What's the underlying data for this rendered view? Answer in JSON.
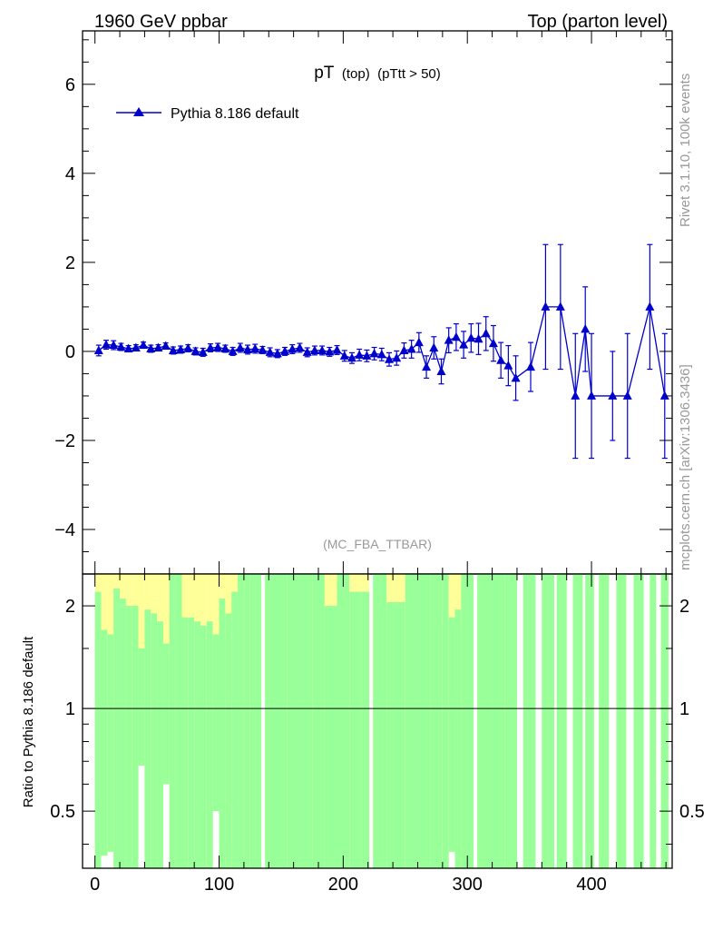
{
  "header": {
    "left_label": "1960 GeV ppbar",
    "right_label": "Top (parton level)"
  },
  "side_labels": {
    "rivet": "Rivet 3.1.10,  100k events",
    "mcplots": "mcplots.cern.ch [arXiv:1306.3436]"
  },
  "colors": {
    "series": "#0000cc",
    "band_inner": "#99ff99",
    "band_outer": "#ffff99",
    "watermark": "#999999"
  },
  "chart_data": [
    {
      "type": "scatter",
      "title": "pT",
      "title_sub1": "(top)",
      "title_sub2": "(pTtt > 50)",
      "watermark": "(MC_FBA_TTBAR)",
      "xlim": [
        -10,
        465
      ],
      "ylim": [
        -5,
        7.2
      ],
      "yticks": [
        -4,
        -2,
        0,
        2,
        4,
        6
      ],
      "ytick_labels": [
        "−4",
        "−2",
        "0",
        "2",
        "4",
        "6"
      ],
      "legend": {
        "label": "Pythia 8.186 default",
        "position": "top-left"
      },
      "series": [
        {
          "name": "Pythia 8.186 default",
          "x": [
            3,
            9,
            15,
            21,
            27,
            33,
            39,
            45,
            51,
            57,
            63,
            69,
            75,
            81,
            87,
            93,
            99,
            105,
            111,
            117,
            123,
            129,
            135,
            141,
            147,
            153,
            159,
            165,
            171,
            177,
            183,
            189,
            195,
            201,
            207,
            213,
            219,
            225,
            231,
            237,
            243,
            249,
            255,
            261,
            267,
            273,
            279,
            285,
            291,
            297,
            303,
            309,
            315,
            321,
            327,
            333,
            339,
            351,
            363,
            375,
            387,
            395,
            400,
            417,
            429,
            447,
            459
          ],
          "y": [
            0.02,
            0.15,
            0.14,
            0.1,
            0.06,
            0.08,
            0.14,
            0.06,
            0.08,
            0.12,
            0.02,
            0.04,
            0.07,
            0.0,
            -0.02,
            0.08,
            0.09,
            0.06,
            0.0,
            0.08,
            0.04,
            0.06,
            0.03,
            -0.02,
            -0.05,
            0.0,
            0.05,
            0.08,
            -0.02,
            0.02,
            0.02,
            -0.01,
            0.03,
            -0.1,
            -0.15,
            -0.08,
            -0.1,
            -0.05,
            -0.07,
            -0.18,
            -0.15,
            0.02,
            0.05,
            0.2,
            -0.35,
            0.08,
            -0.45,
            0.25,
            0.32,
            0.15,
            0.3,
            0.28,
            0.4,
            0.18,
            -0.2,
            -0.32,
            -0.6,
            -0.35,
            1.0,
            1.0,
            -1.0,
            0.5,
            -1.0,
            -1.0,
            -1.0,
            1.0,
            -1.0
          ],
          "yerr": [
            0.12,
            0.1,
            0.1,
            0.08,
            0.07,
            0.07,
            0.07,
            0.08,
            0.07,
            0.07,
            0.08,
            0.08,
            0.08,
            0.08,
            0.09,
            0.09,
            0.09,
            0.08,
            0.09,
            0.1,
            0.1,
            0.1,
            0.08,
            0.1,
            0.09,
            0.09,
            0.1,
            0.1,
            0.1,
            0.1,
            0.1,
            0.1,
            0.1,
            0.12,
            0.12,
            0.13,
            0.13,
            0.14,
            0.14,
            0.15,
            0.16,
            0.17,
            0.2,
            0.22,
            0.25,
            0.25,
            0.28,
            0.28,
            0.3,
            0.3,
            0.32,
            0.35,
            0.38,
            0.4,
            0.4,
            0.45,
            0.5,
            0.55,
            1.4,
            1.4,
            1.4,
            0.95,
            1.4,
            1.0,
            1.4,
            1.4,
            1.4
          ]
        }
      ]
    },
    {
      "type": "bar",
      "ylabel": "Ratio to Pythia 8.186 default",
      "xlim": [
        -10,
        465
      ],
      "ylim": [
        0.34,
        2.48
      ],
      "yscale": "log",
      "yticks": [
        0.5,
        1,
        2
      ],
      "ytick_labels": [
        "0.5",
        "1",
        "2"
      ],
      "xticks": [
        0,
        100,
        200,
        300,
        400
      ],
      "xtick_labels": [
        "0",
        "100",
        "200",
        "300",
        "400"
      ],
      "reference_line": 1,
      "band_bins_x": [
        [
          0,
          5
        ],
        [
          5,
          10
        ],
        [
          10,
          15
        ],
        [
          15,
          20
        ],
        [
          20,
          25
        ],
        [
          25,
          30
        ],
        [
          30,
          35
        ],
        [
          35,
          40
        ],
        [
          40,
          45
        ],
        [
          45,
          50
        ],
        [
          50,
          55
        ],
        [
          55,
          60
        ],
        [
          60,
          65
        ],
        [
          65,
          70
        ],
        [
          70,
          75
        ],
        [
          75,
          80
        ],
        [
          80,
          85
        ],
        [
          85,
          90
        ],
        [
          90,
          95
        ],
        [
          95,
          100
        ],
        [
          100,
          105
        ],
        [
          105,
          110
        ],
        [
          110,
          115
        ],
        [
          115,
          120
        ],
        [
          120,
          125
        ],
        [
          125,
          130
        ],
        [
          130,
          134
        ],
        [
          137,
          155
        ],
        [
          155,
          165
        ],
        [
          165,
          175
        ],
        [
          175,
          185
        ],
        [
          185,
          195
        ],
        [
          195,
          205
        ],
        [
          205,
          215
        ],
        [
          215,
          221
        ],
        [
          224,
          235
        ],
        [
          235,
          250
        ],
        [
          250,
          260
        ],
        [
          260,
          270
        ],
        [
          270,
          280
        ],
        [
          280,
          285
        ],
        [
          285,
          290
        ],
        [
          290,
          295
        ],
        [
          295,
          305
        ],
        [
          308,
          320
        ],
        [
          320,
          330
        ],
        [
          330,
          340
        ],
        [
          345,
          355
        ],
        [
          360,
          370
        ],
        [
          372,
          380
        ],
        [
          385,
          393
        ],
        [
          395,
          402
        ],
        [
          406,
          414
        ],
        [
          420,
          428
        ],
        [
          434,
          442
        ],
        [
          447,
          452
        ],
        [
          456,
          462
        ]
      ],
      "band_inner_hi": [
        2.48,
        1.7,
        1.65,
        2.48,
        2.48,
        2.48,
        2.48,
        2.1,
        2.48,
        2.48,
        2.48,
        2.0,
        2.48,
        2.48,
        2.48,
        2.48,
        2.48,
        2.48,
        2.48,
        1.95,
        2.48,
        2.48,
        2.48,
        2.48,
        2.48,
        2.48,
        2.48,
        2.48,
        2.48,
        2.48,
        2.48,
        2.48,
        2.48,
        2.48,
        2.48,
        2.48,
        2.48,
        2.48,
        2.48,
        2.48,
        2.48,
        2.48,
        2.48,
        2.48,
        2.48,
        2.48,
        2.48,
        2.48,
        2.48,
        2.48,
        2.48,
        2.48,
        2.48,
        2.48,
        2.48,
        2.48,
        2.48
      ],
      "band_inner_lo": [
        0.34,
        0.34,
        0.34,
        0.34,
        0.34,
        0.34,
        0.34,
        0.34,
        0.34,
        0.34,
        0.34,
        0.34,
        0.34,
        0.34,
        0.34,
        0.34,
        0.34,
        0.34,
        0.34,
        0.34,
        0.34,
        0.34,
        0.34,
        0.34,
        0.34,
        0.34,
        0.34,
        0.34,
        0.34,
        0.34,
        0.34,
        0.34,
        0.34,
        0.34,
        0.34,
        0.34,
        0.34,
        0.34,
        0.34,
        0.34,
        0.34,
        0.34,
        0.34,
        0.34,
        0.34,
        0.34,
        0.34,
        0.34,
        0.34,
        0.34,
        0.34,
        0.34,
        0.34,
        0.34,
        0.34,
        0.34,
        0.34
      ],
      "band_outer_hi": [
        2.48,
        2.48,
        2.48,
        2.48,
        2.48,
        2.48,
        2.48,
        2.48,
        2.48,
        2.48,
        2.48,
        2.48,
        2.48,
        2.48,
        2.48,
        2.48,
        2.48,
        2.48,
        2.48,
        2.48,
        2.48,
        2.48,
        2.48,
        2.48,
        2.48,
        2.48,
        2.48,
        2.48,
        2.48,
        2.48,
        2.48,
        2.48,
        2.48,
        2.48,
        2.48,
        2.48,
        2.48,
        2.48,
        2.48,
        2.48,
        2.48,
        2.48,
        2.48,
        2.48,
        2.48,
        2.48,
        2.48,
        2.48,
        2.48,
        2.48,
        2.48,
        2.48,
        2.48,
        2.48,
        2.48,
        2.48,
        2.48
      ],
      "band_outer_lo": [
        0.34,
        0.37,
        0.38,
        0.34,
        0.34,
        0.34,
        0.34,
        0.68,
        0.34,
        0.34,
        0.34,
        0.6,
        0.34,
        0.34,
        0.34,
        0.34,
        0.34,
        0.34,
        0.34,
        0.5,
        0.34,
        0.34,
        0.34,
        0.34,
        0.34,
        0.34,
        0.34,
        0.34,
        0.34,
        0.34,
        0.34,
        0.34,
        0.34,
        0.34,
        0.34,
        0.34,
        0.34,
        0.34,
        0.34,
        0.34,
        0.34,
        0.38,
        0.34,
        0.34,
        0.34,
        0.34,
        0.34,
        0.34,
        0.34,
        0.34,
        0.34,
        0.34,
        0.34,
        0.34,
        0.34,
        0.34,
        0.34
      ],
      "band_yellow_top": [
        2.2,
        1.7,
        1.65,
        2.25,
        2.1,
        2.0,
        2.0,
        1.5,
        1.95,
        1.9,
        1.8,
        1.55,
        2.48,
        2.48,
        1.85,
        1.85,
        1.8,
        1.75,
        1.8,
        1.65,
        2.1,
        1.9,
        2.2,
        2.48,
        2.48,
        2.48,
        2.48,
        2.48,
        2.48,
        2.48,
        2.48,
        2.0,
        2.48,
        2.2,
        2.2,
        2.48,
        2.05,
        2.48,
        2.48,
        2.48,
        2.48,
        1.85,
        1.95,
        2.48,
        2.48,
        2.48,
        2.48,
        2.48,
        2.48,
        2.48,
        2.48,
        2.48,
        2.48,
        2.48,
        2.48,
        2.48,
        2.48
      ]
    }
  ]
}
